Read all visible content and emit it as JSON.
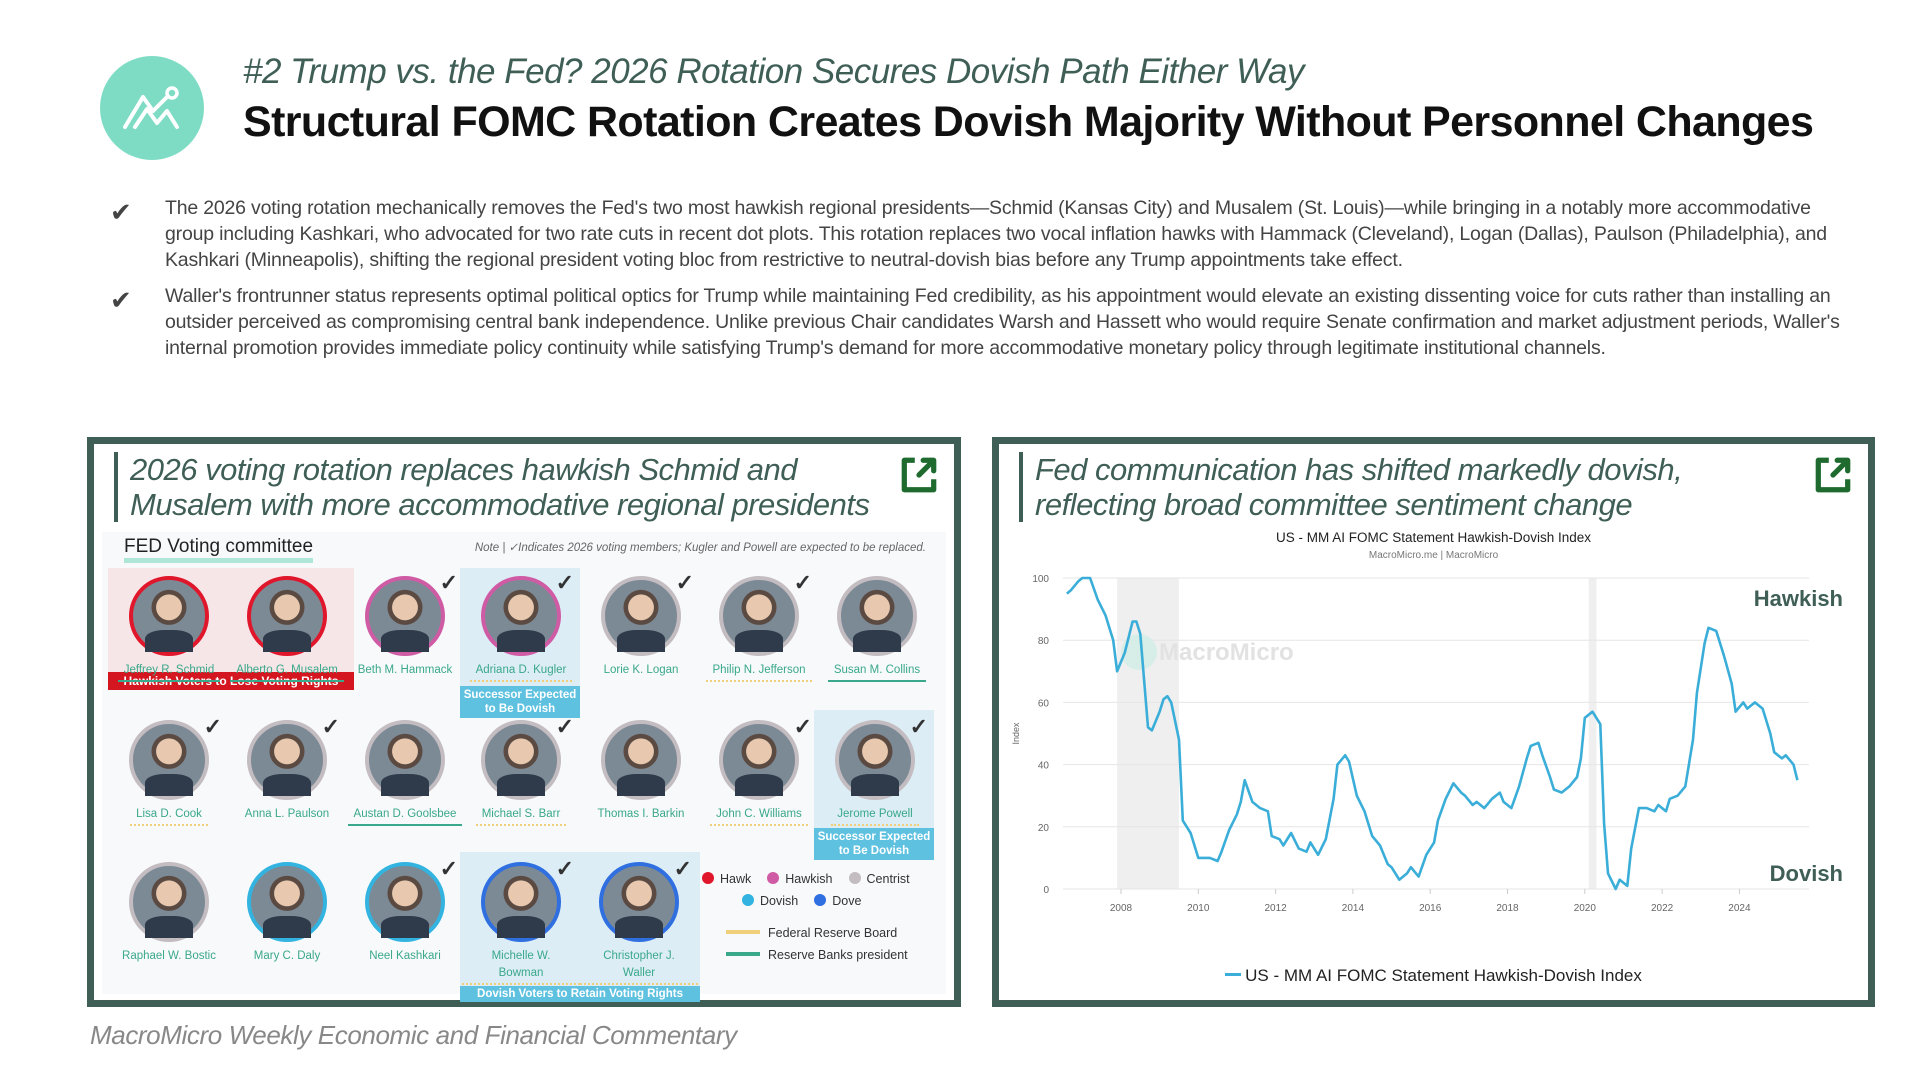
{
  "header": {
    "logo_icon": "macromicro-chart-logo-icon",
    "subtitle": "#2 Trump vs. the Fed? 2026 Rotation Secures Dovish Path Either Way",
    "title": "Structural FOMC Rotation Creates Dovish Majority Without Personnel Changes"
  },
  "bullets": [
    {
      "icon": "check-icon",
      "mark": "✔",
      "text": "The 2026 voting rotation mechanically removes the Fed's two most hawkish regional presidents—Schmid (Kansas City) and Musalem (St. Louis)—while bringing in a notably more accommodative group including Kashkari, who advocated for two rate cuts in recent dot plots. This rotation replaces two vocal inflation hawks with Hammack (Cleveland), Logan (Dallas), Paulson (Philadelphia), and Kashkari (Minneapolis), shifting the regional president voting bloc from restrictive to neutral-dovish bias before any Trump appointments take effect."
    },
    {
      "icon": "check-icon",
      "mark": "✔",
      "text": "Waller's frontrunner status represents optimal political optics for Trump while maintaining Fed credibility, as his appointment would elevate an existing dissenting voice for cuts rather than installing an outsider perceived as compromising central bank independence. Unlike previous Chair candidates Warsh and Hassett who would require Senate confirmation and market adjustment periods, Waller's internal promotion provides immediate policy continuity while satisfying Trump's demand for more accommodative monetary policy through legitimate institutional channels."
    }
  ],
  "left_panel": {
    "heading": "2026 voting rotation replaces hawkish Schmid and Musalem with more accommodative regional presidents",
    "external_link_icon": "external-link-icon",
    "committee_title": "FED Voting committee",
    "note": "Note | ✓Indicates 2026 voting members; Kugler and Powell are expected to be replaced.",
    "vote_mark": "✓",
    "people": [
      {
        "name": "Jeffrey R. Schmid",
        "stance": "hawk",
        "role": "bank",
        "voting_2026": false
      },
      {
        "name": "Alberto G. Musalem",
        "stance": "hawk",
        "role": "bank",
        "voting_2026": false
      },
      {
        "name": "Beth M. Hammack",
        "stance": "hawkish",
        "role": "none",
        "voting_2026": true
      },
      {
        "name": "Adriana D. Kugler",
        "stance": "hawkish",
        "role": "board",
        "voting_2026": true
      },
      {
        "name": "Lorie K. Logan",
        "stance": "centrist",
        "role": "none",
        "voting_2026": true
      },
      {
        "name": "Philip N. Jefferson",
        "stance": "centrist",
        "role": "board",
        "voting_2026": true
      },
      {
        "name": "Susan M. Collins",
        "stance": "centrist",
        "role": "bank",
        "voting_2026": false
      },
      {
        "name": "Lisa D. Cook",
        "stance": "centrist",
        "role": "board",
        "voting_2026": true
      },
      {
        "name": "Anna L. Paulson",
        "stance": "centrist",
        "role": "none",
        "voting_2026": true
      },
      {
        "name": "Austan D. Goolsbee",
        "stance": "centrist",
        "role": "bank",
        "voting_2026": false
      },
      {
        "name": "Michael S. Barr",
        "stance": "centrist",
        "role": "board",
        "voting_2026": true
      },
      {
        "name": "Thomas I. Barkin",
        "stance": "centrist",
        "role": "none",
        "voting_2026": false
      },
      {
        "name": "John C. Williams",
        "stance": "centrist",
        "role": "board",
        "voting_2026": true
      },
      {
        "name": "Jerome Powell",
        "stance": "centrist",
        "role": "board",
        "voting_2026": true
      },
      {
        "name": "Raphael W. Bostic",
        "stance": "centrist",
        "role": "none",
        "voting_2026": false
      },
      {
        "name": "Mary C. Daly",
        "stance": "dovish",
        "role": "none",
        "voting_2026": false
      },
      {
        "name": "Neel Kashkari",
        "stance": "dovish",
        "role": "none",
        "voting_2026": true
      },
      {
        "name": "Michelle W. Bowman",
        "stance": "dove",
        "role": "board",
        "voting_2026": true
      },
      {
        "name": "Christopher J. Waller",
        "stance": "dove",
        "role": "board",
        "voting_2026": true
      }
    ],
    "tags": {
      "hawkish_lose": "Hawkish Voters to Lose Voting Rights",
      "successor_kugler": "Successor Expected to Be Dovish",
      "successor_powell": "Successor Expected to Be Dovish",
      "dovish_retain": "Dovish Voters to Retain Voting Rights"
    },
    "legend": {
      "stances": [
        {
          "label": "Hawk",
          "color": "#e0162b"
        },
        {
          "label": "Hawkish",
          "color": "#d05ba5"
        },
        {
          "label": "Centrist",
          "color": "#c3bcc0"
        },
        {
          "label": "Dovish",
          "color": "#33b4e0"
        },
        {
          "label": "Dove",
          "color": "#2f6fe0"
        }
      ],
      "roles": [
        {
          "label": "Federal Reserve Board",
          "color": "#f0cf7a"
        },
        {
          "label": "Reserve Banks president",
          "color": "#3aa88a"
        }
      ]
    }
  },
  "right_panel": {
    "heading": "Fed communication has shifted markedly dovish, reflecting broad committee sentiment change",
    "external_link_icon": "external-link-icon",
    "watermark": "MacroMicro",
    "annot_top": "Hawkish",
    "annot_bottom": "Dovish"
  },
  "chart_data": {
    "type": "line",
    "title": "US - MM AI FOMC Statement Hawkish-Dovish Index",
    "subtitle": "MacroMicro.me | MacroMicro",
    "xlabel": "",
    "ylabel": "Index",
    "ylim": [
      0,
      100
    ],
    "yticks": [
      0,
      20,
      40,
      60,
      80,
      100
    ],
    "xticks": [
      "2008",
      "2010",
      "2012",
      "2014",
      "2016",
      "2018",
      "2020",
      "2022",
      "2024"
    ],
    "grid": true,
    "legend_position": "bottom",
    "shaded_periods": [
      [
        "2007.9",
        "2009.5"
      ],
      [
        "2020.1",
        "2020.3"
      ]
    ],
    "annotations": [
      "Hawkish",
      "Dovish"
    ],
    "series": [
      {
        "name": "US - MM AI FOMC Statement Hawkish-Dovish Index",
        "color": "#3aaed8",
        "x": [
          2006.6,
          2006.7,
          2006.9,
          2007.0,
          2007.2,
          2007.4,
          2007.6,
          2007.8,
          2007.9,
          2008.1,
          2008.3,
          2008.4,
          2008.5,
          2008.7,
          2008.8,
          2009.0,
          2009.1,
          2009.2,
          2009.3,
          2009.5,
          2009.6,
          2009.8,
          2010.0,
          2010.1,
          2010.3,
          2010.5,
          2010.6,
          2010.8,
          2011.0,
          2011.1,
          2011.2,
          2011.4,
          2011.6,
          2011.8,
          2011.9,
          2012.1,
          2012.2,
          2012.4,
          2012.6,
          2012.8,
          2012.9,
          2013.1,
          2013.3,
          2013.5,
          2013.6,
          2013.8,
          2013.9,
          2014.1,
          2014.3,
          2014.5,
          2014.7,
          2014.9,
          2015.0,
          2015.2,
          2015.4,
          2015.5,
          2015.7,
          2015.9,
          2016.1,
          2016.2,
          2016.4,
          2016.6,
          2016.8,
          2016.9,
          2017.1,
          2017.2,
          2017.4,
          2017.6,
          2017.8,
          2017.9,
          2018.1,
          2018.3,
          2018.5,
          2018.6,
          2018.8,
          2018.9,
          2019.1,
          2019.2,
          2019.4,
          2019.6,
          2019.8,
          2019.9,
          2020.0,
          2020.2,
          2020.4,
          2020.5,
          2020.6,
          2020.8,
          2020.9,
          2021.1,
          2021.2,
          2021.4,
          2021.6,
          2021.8,
          2021.9,
          2022.1,
          2022.2,
          2022.4,
          2022.6,
          2022.8,
          2022.9,
          2023.1,
          2023.2,
          2023.4,
          2023.6,
          2023.8,
          2023.9,
          2024.1,
          2024.2,
          2024.4,
          2024.6,
          2024.8,
          2024.9,
          2025.1,
          2025.2,
          2025.4,
          2025.5
        ],
        "values": [
          95,
          96,
          99,
          100,
          100,
          93,
          88,
          80,
          70,
          76,
          86,
          86,
          82,
          52,
          51,
          57,
          61,
          62,
          60,
          48,
          22,
          18,
          10,
          10,
          10,
          9,
          12,
          19,
          24,
          28,
          35,
          28,
          26,
          25,
          17,
          16,
          14,
          18,
          13,
          12,
          15,
          11,
          16,
          29,
          40,
          43,
          41,
          30,
          25,
          17,
          14,
          8,
          7,
          3,
          5,
          7,
          4,
          11,
          15,
          22,
          29,
          34,
          31,
          30,
          27,
          28,
          26,
          29,
          31,
          28,
          26,
          33,
          42,
          46,
          47,
          43,
          36,
          32,
          31,
          33,
          36,
          42,
          55,
          57,
          53,
          21,
          5,
          0,
          3,
          1,
          13,
          26,
          26,
          25,
          27,
          25,
          29,
          30,
          33,
          48,
          63,
          79,
          84,
          83,
          75,
          66,
          57,
          60,
          58,
          60,
          58,
          50,
          44,
          42,
          43,
          40,
          35
        ]
      }
    ]
  },
  "footer": {
    "text": "MacroMicro Weekly Economic and Financial Commentary"
  }
}
